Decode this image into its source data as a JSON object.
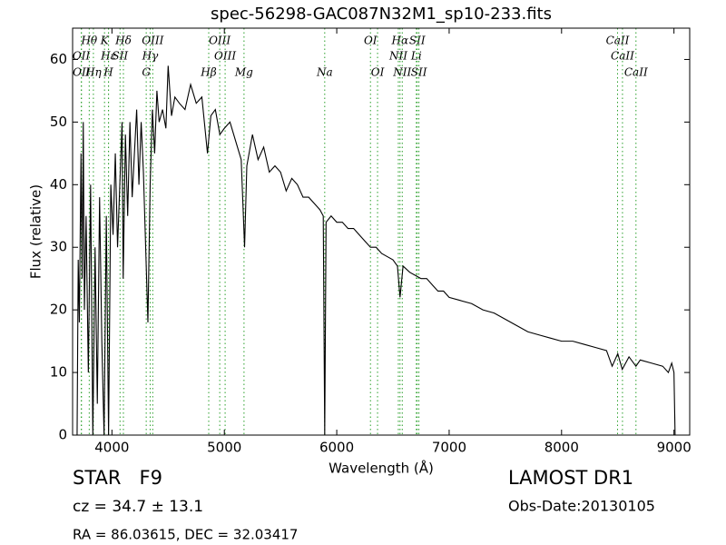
{
  "chart_data": {
    "type": "line",
    "title": "spec-56298-GAC087N32M1_sp10-233.fits",
    "x_label": "Wavelength (Å)",
    "y_label": "Flux (relative)",
    "xlim": [
      3650,
      9140
    ],
    "ylim": [
      0,
      65
    ],
    "xticks": [
      4000,
      5000,
      6000,
      7000,
      8000,
      9000
    ],
    "yticks": [
      0,
      10,
      20,
      30,
      40,
      50,
      60
    ],
    "grid": false,
    "line_color": "#000000",
    "annotation_color": "#2ca02c",
    "annotations": [
      {
        "label": "Hθ",
        "x": 3798
      },
      {
        "label": "K",
        "x": 3934
      },
      {
        "label": "Hδ",
        "x": 4102
      },
      {
        "label": "OIII",
        "x": 4363
      },
      {
        "label": "OIII",
        "x": 4959
      },
      {
        "label": "OI",
        "x": 6300
      },
      {
        "label": "Hα",
        "x": 6563
      },
      {
        "label": "SII",
        "x": 6716
      },
      {
        "label": "CaII",
        "x": 8498
      },
      {
        "label": "OII",
        "x": 3727
      },
      {
        "label": "Hε",
        "x": 3970
      },
      {
        "label": "SII",
        "x": 4072
      },
      {
        "label": "Hγ",
        "x": 4340
      },
      {
        "label": "OIII",
        "x": 5007
      },
      {
        "label": "NII",
        "x": 6548
      },
      {
        "label": "Li",
        "x": 6708
      },
      {
        "label": "CaII",
        "x": 8542
      },
      {
        "label": "OII",
        "x": 3729
      },
      {
        "label": "Hη",
        "x": 3835
      },
      {
        "label": "H",
        "x": 3969
      },
      {
        "label": "G",
        "x": 4305
      },
      {
        "label": "Hβ",
        "x": 4861
      },
      {
        "label": "Mg",
        "x": 5175
      },
      {
        "label": "Na",
        "x": 5893
      },
      {
        "label": "OI",
        "x": 6363
      },
      {
        "label": "NII",
        "x": 6583
      },
      {
        "label": "SII",
        "x": 6731
      },
      {
        "label": "CaII",
        "x": 8662
      }
    ],
    "x": [
      3690,
      3700,
      3710,
      3725,
      3735,
      3745,
      3755,
      3770,
      3790,
      3810,
      3830,
      3850,
      3870,
      3890,
      3910,
      3930,
      3950,
      3970,
      3990,
      4010,
      4030,
      4050,
      4070,
      4090,
      4100,
      4120,
      4140,
      4160,
      4180,
      4200,
      4220,
      4240,
      4260,
      4280,
      4300,
      4320,
      4340,
      4360,
      4380,
      4400,
      4420,
      4450,
      4480,
      4500,
      4530,
      4560,
      4600,
      4650,
      4700,
      4750,
      4800,
      4850,
      4880,
      4920,
      4960,
      5000,
      5050,
      5100,
      5150,
      5180,
      5200,
      5250,
      5300,
      5350,
      5400,
      5450,
      5500,
      5550,
      5600,
      5650,
      5700,
      5750,
      5800,
      5850,
      5880,
      5893,
      5905,
      5950,
      6000,
      6050,
      6100,
      6150,
      6200,
      6250,
      6300,
      6350,
      6400,
      6450,
      6500,
      6540,
      6563,
      6590,
      6650,
      6700,
      6750,
      6800,
      6850,
      6900,
      6950,
      7000,
      7100,
      7200,
      7300,
      7400,
      7500,
      7600,
      7700,
      7800,
      7900,
      8000,
      8100,
      8200,
      8300,
      8400,
      8450,
      8500,
      8540,
      8600,
      8662,
      8700,
      8800,
      8900,
      8950,
      8980,
      9000,
      9010
    ],
    "values": [
      0,
      28,
      18,
      45,
      25,
      50,
      20,
      35,
      10,
      40,
      0,
      30,
      5,
      38,
      15,
      0,
      35,
      0,
      40,
      32,
      45,
      30,
      40,
      50,
      25,
      48,
      35,
      50,
      38,
      45,
      52,
      40,
      50,
      42,
      30,
      18,
      40,
      52,
      45,
      55,
      50,
      52,
      49,
      59,
      51,
      54,
      53,
      52,
      56,
      53,
      54,
      45,
      51,
      52,
      48,
      49,
      50,
      47,
      44,
      30,
      43,
      48,
      44,
      46,
      42,
      43,
      42,
      39,
      41,
      40,
      38,
      38,
      37,
      36,
      35,
      0,
      34,
      35,
      34,
      34,
      33,
      33,
      32,
      31,
      30,
      30,
      29,
      28.5,
      28,
      27,
      22,
      27,
      26,
      25.5,
      25,
      25,
      24,
      23,
      23,
      22,
      21.5,
      21,
      20,
      19.5,
      18.5,
      17.5,
      16.5,
      16,
      15.5,
      15,
      15,
      14.5,
      14,
      13.5,
      11,
      13,
      10.5,
      12.5,
      11,
      12,
      11.5,
      11,
      10,
      11.5,
      10,
      0
    ]
  },
  "footer": {
    "object_class": "STAR   F9",
    "survey": "LAMOST DR1",
    "redshift": "cz = 34.7 ± 13.1",
    "obs_date": "Obs-Date:20130105",
    "coordinates": "RA = 86.03615, DEC = 32.03417"
  }
}
